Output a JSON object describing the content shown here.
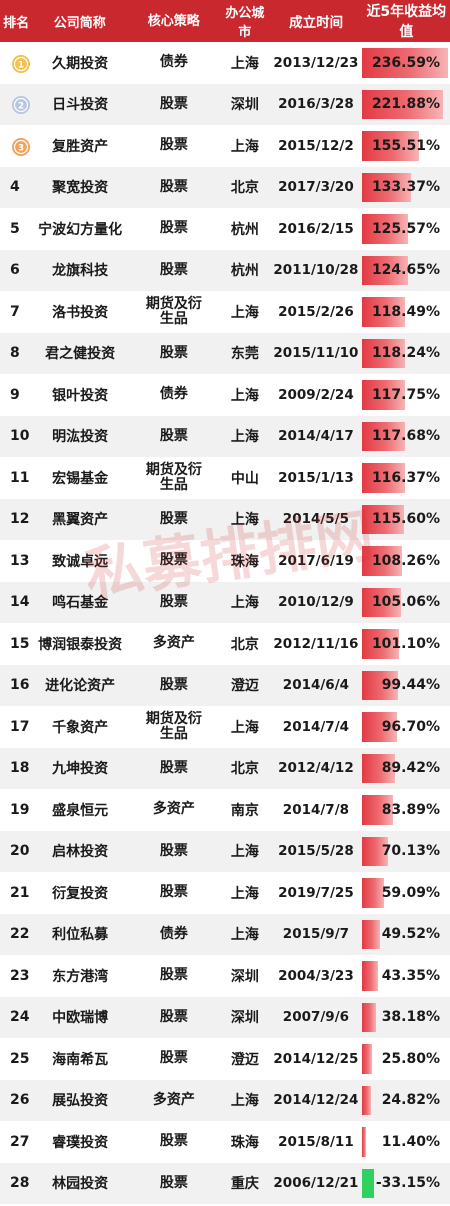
{
  "headers": {
    "rank": "排名",
    "company": "公司简称",
    "strategy": "核心策略",
    "city": "办公城市",
    "founded": "成立时间",
    "return": "近5年收益均值"
  },
  "colors": {
    "header_bg": "#c8282e",
    "positive_bar": "#e23a43",
    "negative_bar": "#2fd160",
    "gold_medal": "#f2c14e",
    "silver_medal": "#b9c6dd",
    "bronze_medal": "#f0a35a"
  },
  "watermark_text": "私募排排网",
  "rows": [
    {
      "rank": "1",
      "medal": "gold",
      "medal_number": "1",
      "company": "久期投资",
      "strategy": "债券",
      "city": "上海",
      "founded": "2013/12/23",
      "return": "236.59%",
      "value": 236.59
    },
    {
      "rank": "2",
      "medal": "silver",
      "medal_number": "2",
      "company": "日斗投资",
      "strategy": "股票",
      "city": "深圳",
      "founded": "2016/3/28",
      "return": "221.88%",
      "value": 221.88
    },
    {
      "rank": "3",
      "medal": "bronze",
      "medal_number": "3",
      "company": "复胜资产",
      "strategy": "股票",
      "city": "上海",
      "founded": "2015/12/2",
      "return": "155.51%",
      "value": 155.51
    },
    {
      "rank": "4",
      "company": "聚宽投资",
      "strategy": "股票",
      "city": "北京",
      "founded": "2017/3/20",
      "return": "133.37%",
      "value": 133.37
    },
    {
      "rank": "5",
      "company": "宁波幻方量化",
      "strategy": "股票",
      "city": "杭州",
      "founded": "2016/2/15",
      "return": "125.57%",
      "value": 125.57
    },
    {
      "rank": "6",
      "company": "龙旗科技",
      "strategy": "股票",
      "city": "杭州",
      "founded": "2011/10/28",
      "return": "124.65%",
      "value": 124.65
    },
    {
      "rank": "7",
      "company": "洛书投资",
      "strategy_lines": [
        "期货及衍",
        "生品"
      ],
      "city": "上海",
      "founded": "2015/2/26",
      "return": "118.49%",
      "value": 118.49
    },
    {
      "rank": "8",
      "company": "君之健投资",
      "strategy": "股票",
      "city": "东莞",
      "founded": "2015/11/10",
      "return": "118.24%",
      "value": 118.24
    },
    {
      "rank": "9",
      "company": "银叶投资",
      "strategy": "债券",
      "city": "上海",
      "founded": "2009/2/24",
      "return": "117.75%",
      "value": 117.75
    },
    {
      "rank": "10",
      "company": "明汯投资",
      "strategy": "股票",
      "city": "上海",
      "founded": "2014/4/17",
      "return": "117.68%",
      "value": 117.68
    },
    {
      "rank": "11",
      "company": "宏锡基金",
      "strategy_lines": [
        "期货及衍",
        "生品"
      ],
      "city": "中山",
      "founded": "2015/1/13",
      "return": "116.37%",
      "value": 116.37
    },
    {
      "rank": "12",
      "company": "黑翼资产",
      "strategy": "股票",
      "city": "上海",
      "founded": "2014/5/5",
      "return": "115.60%",
      "value": 115.6
    },
    {
      "rank": "13",
      "company": "致诚卓远",
      "strategy": "股票",
      "city": "珠海",
      "founded": "2017/6/19",
      "return": "108.26%",
      "value": 108.26
    },
    {
      "rank": "14",
      "company": "鸣石基金",
      "strategy": "股票",
      "city": "上海",
      "founded": "2010/12/9",
      "return": "105.06%",
      "value": 105.06
    },
    {
      "rank": "15",
      "company": "博润银泰投资",
      "strategy": "多资产",
      "city": "北京",
      "founded": "2012/11/16",
      "return": "101.10%",
      "value": 101.1
    },
    {
      "rank": "16",
      "company": "进化论资产",
      "strategy": "股票",
      "city": "澄迈",
      "founded": "2014/6/4",
      "return": "99.44%",
      "value": 99.44
    },
    {
      "rank": "17",
      "company": "千象资产",
      "strategy_lines": [
        "期货及衍",
        "生品"
      ],
      "city": "上海",
      "founded": "2014/7/4",
      "return": "96.70%",
      "value": 96.7
    },
    {
      "rank": "18",
      "company": "九坤投资",
      "strategy": "股票",
      "city": "北京",
      "founded": "2012/4/12",
      "return": "89.42%",
      "value": 89.42
    },
    {
      "rank": "19",
      "company": "盛泉恒元",
      "strategy": "多资产",
      "city": "南京",
      "founded": "2014/7/8",
      "return": "83.89%",
      "value": 83.89
    },
    {
      "rank": "20",
      "company": "启林投资",
      "strategy": "股票",
      "city": "上海",
      "founded": "2015/5/28",
      "return": "70.13%",
      "value": 70.13
    },
    {
      "rank": "21",
      "company": "衍复投资",
      "strategy": "股票",
      "city": "上海",
      "founded": "2019/7/25",
      "return": "59.09%",
      "value": 59.09
    },
    {
      "rank": "22",
      "company": "利位私募",
      "strategy": "债券",
      "city": "上海",
      "founded": "2015/9/7",
      "return": "49.52%",
      "value": 49.52
    },
    {
      "rank": "23",
      "company": "东方港湾",
      "strategy": "股票",
      "city": "深圳",
      "founded": "2004/3/23",
      "return": "43.35%",
      "value": 43.35
    },
    {
      "rank": "24",
      "company": "中欧瑞博",
      "strategy": "股票",
      "city": "深圳",
      "founded": "2007/9/6",
      "return": "38.18%",
      "value": 38.18
    },
    {
      "rank": "25",
      "company": "海南希瓦",
      "strategy": "股票",
      "city": "澄迈",
      "founded": "2014/12/25",
      "return": "25.80%",
      "value": 25.8
    },
    {
      "rank": "26",
      "company": "展弘投资",
      "strategy": "多资产",
      "city": "上海",
      "founded": "2014/12/24",
      "return": "24.82%",
      "value": 24.82
    },
    {
      "rank": "27",
      "company": "睿璞投资",
      "strategy": "股票",
      "city": "珠海",
      "founded": "2015/8/11",
      "return": "11.40%",
      "value": 11.4
    },
    {
      "rank": "28",
      "company": "林园投资",
      "strategy": "股票",
      "city": "重庆",
      "founded": "2006/12/21",
      "return": "-33.15%",
      "value": -33.15
    }
  ]
}
